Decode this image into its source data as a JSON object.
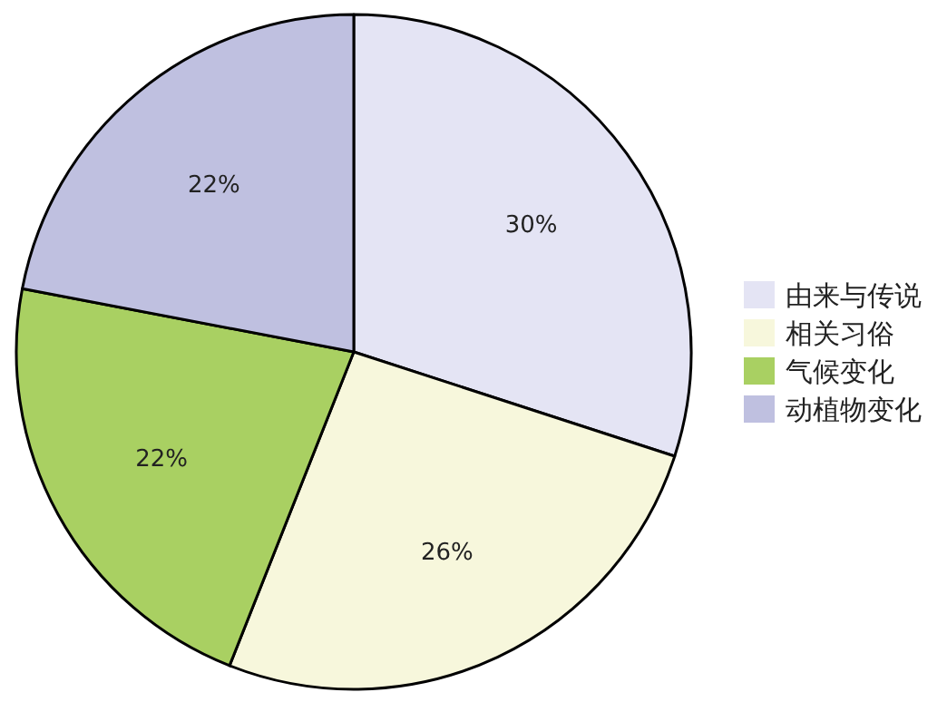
{
  "chart_data": {
    "type": "pie",
    "categories": [
      "由来与传说",
      "相关习俗",
      "气候变化",
      "动植物变化"
    ],
    "values": [
      30,
      26,
      22,
      22
    ],
    "colors": [
      "#e4e4f4",
      "#f7f7dc",
      "#a9d062",
      "#bfc0e0"
    ],
    "value_labels": [
      "30%",
      "26%",
      "22%",
      "22%"
    ],
    "legend": "right"
  }
}
